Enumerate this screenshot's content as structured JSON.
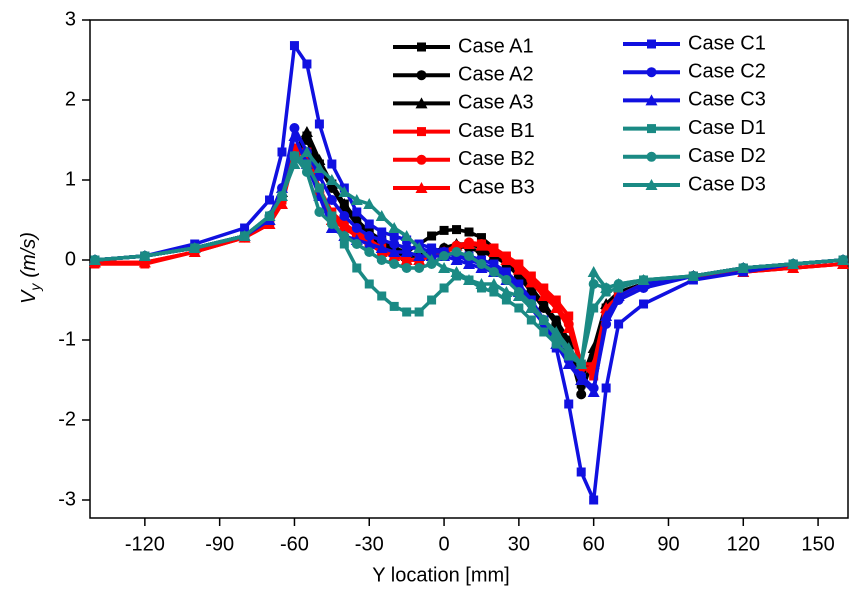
{
  "chart_data": {
    "type": "line",
    "xlabel": "Y location [mm]",
    "ylabel": {
      "main": "V",
      "sub": "y",
      "unit": "(m/s)"
    },
    "xlim": [
      -142,
      162
    ],
    "ylim": [
      -3.225,
      3
    ],
    "xticks": [
      -120,
      -90,
      -60,
      -30,
      0,
      30,
      60,
      90,
      120,
      150
    ],
    "yticks": [
      -3,
      -2,
      -1,
      0,
      1,
      2,
      3
    ],
    "x": [
      -140,
      -120,
      -100,
      -80,
      -70,
      -65,
      -60,
      -55,
      -50,
      -45,
      -40,
      -35,
      -30,
      -25,
      -20,
      -15,
      -10,
      -5,
      0,
      5,
      10,
      15,
      20,
      25,
      30,
      35,
      40,
      45,
      50,
      55,
      60,
      65,
      70,
      80,
      100,
      120,
      140,
      160
    ],
    "series": [
      {
        "name": "Case A1",
        "color": "#000000",
        "marker": "square",
        "values": [
          0,
          0.05,
          0.15,
          0.3,
          0.5,
          0.8,
          1.3,
          1.55,
          1.2,
          0.95,
          0.7,
          0.5,
          0.35,
          0.25,
          0.15,
          0.1,
          0.2,
          0.3,
          0.37,
          0.38,
          0.35,
          0.28,
          0.15,
          0,
          -0.15,
          -0.35,
          -0.55,
          -0.75,
          -1.0,
          -1.55,
          -1.3,
          -0.6,
          -0.4,
          -0.3,
          -0.2,
          -0.1,
          -0.05,
          0
        ]
      },
      {
        "name": "Case A2",
        "color": "#000000",
        "marker": "circle",
        "values": [
          0,
          0.05,
          0.15,
          0.3,
          0.5,
          0.8,
          1.3,
          1.5,
          1.15,
          0.9,
          0.65,
          0.45,
          0.3,
          0.2,
          0.1,
          0.05,
          0.05,
          0.1,
          0.15,
          0.18,
          0.15,
          0.1,
          0.05,
          -0.05,
          -0.2,
          -0.4,
          -0.6,
          -0.8,
          -1.1,
          -1.68,
          -1.2,
          -0.6,
          -0.4,
          -0.3,
          -0.2,
          -0.1,
          -0.05,
          0
        ]
      },
      {
        "name": "Case A3",
        "color": "#000000",
        "marker": "triangle",
        "values": [
          0,
          0.05,
          0.15,
          0.3,
          0.5,
          0.85,
          1.35,
          1.6,
          1.25,
          0.95,
          0.7,
          0.5,
          0.35,
          0.2,
          0.1,
          0.05,
          0.05,
          0.1,
          0.15,
          0.2,
          0.2,
          0.15,
          0.05,
          -0.05,
          -0.2,
          -0.35,
          -0.55,
          -0.8,
          -1.05,
          -1.5,
          -1.1,
          -0.55,
          -0.4,
          -0.3,
          -0.2,
          -0.1,
          -0.05,
          0
        ]
      },
      {
        "name": "Case B1",
        "color": "#ff0000",
        "marker": "square",
        "values": [
          -0.05,
          -0.05,
          0.1,
          0.3,
          0.45,
          0.75,
          1.4,
          1.35,
          0.9,
          0.6,
          0.45,
          0.35,
          0.25,
          0.15,
          0.05,
          0.0,
          0.0,
          0.05,
          0.1,
          0.15,
          0.2,
          0.2,
          0.15,
          0.05,
          -0.05,
          -0.2,
          -0.35,
          -0.5,
          -0.7,
          -1.3,
          -1.45,
          -0.7,
          -0.45,
          -0.3,
          -0.2,
          -0.15,
          -0.1,
          -0.05
        ]
      },
      {
        "name": "Case B2",
        "color": "#ff0000",
        "marker": "circle",
        "values": [
          -0.03,
          -0.03,
          0.1,
          0.28,
          0.45,
          0.75,
          1.35,
          1.3,
          0.85,
          0.55,
          0.4,
          0.3,
          0.2,
          0.1,
          0.05,
          0.0,
          0.0,
          0.05,
          0.1,
          0.18,
          0.22,
          0.2,
          0.12,
          0.02,
          -0.1,
          -0.25,
          -0.4,
          -0.55,
          -0.8,
          -1.35,
          -1.35,
          -0.65,
          -0.45,
          -0.3,
          -0.2,
          -0.15,
          -0.1,
          -0.05
        ]
      },
      {
        "name": "Case B3",
        "color": "#ff0000",
        "marker": "triangle",
        "values": [
          -0.03,
          -0.03,
          0.1,
          0.28,
          0.45,
          0.7,
          1.3,
          1.25,
          0.8,
          0.5,
          0.4,
          0.3,
          0.2,
          0.1,
          0.05,
          0.0,
          0.0,
          0.05,
          0.1,
          0.18,
          0.2,
          0.18,
          0.1,
          0.0,
          -0.12,
          -0.28,
          -0.45,
          -0.6,
          -0.85,
          -1.3,
          -1.3,
          -0.6,
          -0.45,
          -0.3,
          -0.2,
          -0.15,
          -0.1,
          -0.05
        ]
      },
      {
        "name": "Case C1",
        "color": "#1010e0",
        "marker": "square",
        "values": [
          0,
          0.05,
          0.2,
          0.4,
          0.75,
          1.35,
          2.68,
          2.45,
          1.7,
          1.2,
          0.9,
          0.6,
          0.45,
          0.35,
          0.3,
          0.25,
          0.2,
          0.15,
          0.1,
          0.05,
          0.05,
          0.0,
          -0.05,
          -0.15,
          -0.3,
          -0.5,
          -0.75,
          -1.1,
          -1.8,
          -2.65,
          -3.0,
          -1.6,
          -0.8,
          -0.55,
          -0.25,
          -0.15,
          -0.05,
          0
        ]
      },
      {
        "name": "Case C2",
        "color": "#1010e0",
        "marker": "circle",
        "values": [
          0,
          0.05,
          0.15,
          0.3,
          0.55,
          0.9,
          1.65,
          1.35,
          1.05,
          0.75,
          0.55,
          0.4,
          0.3,
          0.25,
          0.2,
          0.15,
          0.15,
          0.1,
          0.1,
          0.05,
          0.0,
          -0.05,
          -0.1,
          -0.2,
          -0.35,
          -0.55,
          -0.75,
          -1.0,
          -1.25,
          -1.45,
          -1.6,
          -0.8,
          -0.5,
          -0.35,
          -0.2,
          -0.1,
          -0.05,
          0
        ]
      },
      {
        "name": "Case C3",
        "color": "#1010e0",
        "marker": "triangle",
        "values": [
          0,
          0.05,
          0.15,
          0.3,
          0.5,
          0.9,
          1.55,
          1.2,
          0.8,
          0.4,
          0.3,
          0.25,
          0.2,
          0.15,
          0.1,
          0.1,
          0.05,
          0.05,
          0.05,
          0.0,
          -0.05,
          -0.1,
          -0.15,
          -0.25,
          -0.4,
          -0.6,
          -0.8,
          -1.05,
          -1.3,
          -1.5,
          -1.65,
          -0.7,
          -0.45,
          -0.3,
          -0.2,
          -0.1,
          -0.05,
          0
        ]
      },
      {
        "name": "Case D1",
        "color": "#1a8a84",
        "marker": "square",
        "values": [
          0,
          0.05,
          0.15,
          0.3,
          0.55,
          0.8,
          1.3,
          1.2,
          0.9,
          0.55,
          0.2,
          -0.1,
          -0.3,
          -0.45,
          -0.58,
          -0.65,
          -0.65,
          -0.5,
          -0.35,
          -0.2,
          -0.25,
          -0.35,
          -0.4,
          -0.5,
          -0.6,
          -0.75,
          -0.9,
          -1.05,
          -1.2,
          -1.3,
          -0.6,
          -0.4,
          -0.35,
          -0.25,
          -0.2,
          -0.1,
          -0.05,
          0
        ]
      },
      {
        "name": "Case D2",
        "color": "#1a8a84",
        "marker": "circle",
        "values": [
          0,
          0.05,
          0.15,
          0.3,
          0.55,
          0.8,
          1.3,
          1.1,
          0.6,
          0.45,
          0.3,
          0.2,
          0.1,
          0.0,
          -0.05,
          -0.1,
          -0.1,
          -0.05,
          0.05,
          0.1,
          0.05,
          -0.05,
          -0.15,
          -0.25,
          -0.4,
          -0.55,
          -0.75,
          -0.95,
          -1.15,
          -1.3,
          -0.3,
          -0.35,
          -0.3,
          -0.25,
          -0.2,
          -0.1,
          -0.05,
          0
        ]
      },
      {
        "name": "Case D3",
        "color": "#1a8a84",
        "marker": "triangle",
        "values": [
          0,
          0.05,
          0.15,
          0.3,
          0.55,
          0.8,
          1.2,
          1.35,
          1.15,
          1.0,
          0.85,
          0.75,
          0.7,
          0.55,
          0.4,
          0.3,
          0.15,
          0.0,
          -0.1,
          -0.15,
          -0.25,
          -0.3,
          -0.3,
          -0.4,
          -0.45,
          -0.6,
          -0.75,
          -0.9,
          -1.1,
          -1.3,
          -0.15,
          -0.35,
          -0.3,
          -0.25,
          -0.2,
          -0.1,
          -0.05,
          0
        ]
      }
    ]
  }
}
